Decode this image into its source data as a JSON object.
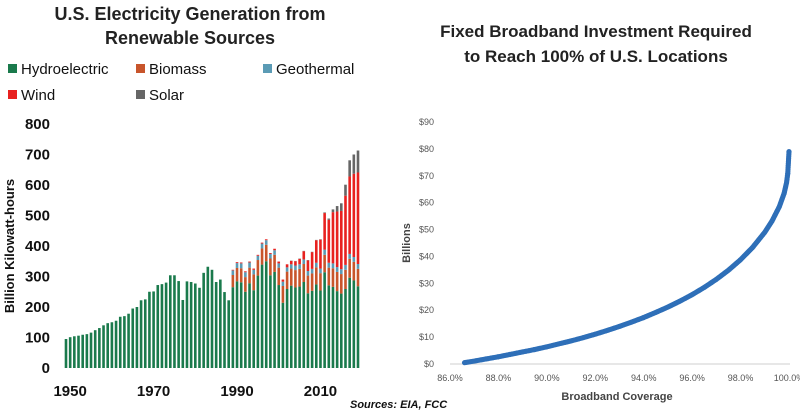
{
  "left_chart": {
    "title_line1": "U.S. Electricity Generation from",
    "title_line2": "Renewable Sources",
    "ylabel": "Billion Kilowatt-hours",
    "legend": {
      "hydro": "Hydroelectric",
      "biomass": "Biomass",
      "geothermal": "Geothermal",
      "wind": "Wind",
      "solar": "Solar"
    },
    "y_ticks": [
      "0",
      "100",
      "200",
      "300",
      "400",
      "500",
      "600",
      "700",
      "800"
    ],
    "x_ticks": [
      "1950",
      "1970",
      "1990",
      "2010"
    ]
  },
  "right_chart": {
    "title_line1": "Fixed Broadband Investment Required",
    "title_line2": "to Reach 100% of U.S. Locations",
    "ylabel": "Billions",
    "xlabel": "Broadband  Coverage",
    "y_ticks": [
      "$0",
      "$10",
      "$20",
      "$30",
      "$40",
      "$50",
      "$60",
      "$70",
      "$80",
      "$90"
    ],
    "x_ticks": [
      "86.0%",
      "88.0%",
      "90.0%",
      "92.0%",
      "94.0%",
      "96.0%",
      "98.0%",
      "100.0%"
    ]
  },
  "source_note": "Sources: EIA, FCC",
  "colors": {
    "hydro": "#1a7a4c",
    "biomass": "#c8552b",
    "geothermal": "#5b9bb5",
    "wind": "#e8211f",
    "solar": "#666666",
    "scatter": "#2e6fb8"
  },
  "chart_data": [
    {
      "type": "bar",
      "stacked": true,
      "title": "U.S. Electricity Generation from Renewable Sources",
      "ylabel": "Billion Kilowatt-hours",
      "ylim": [
        0,
        800
      ],
      "x": [
        1949,
        1950,
        1951,
        1952,
        1953,
        1954,
        1955,
        1956,
        1957,
        1958,
        1959,
        1960,
        1961,
        1962,
        1963,
        1964,
        1965,
        1966,
        1967,
        1968,
        1969,
        1970,
        1971,
        1972,
        1973,
        1974,
        1975,
        1976,
        1977,
        1978,
        1979,
        1980,
        1981,
        1982,
        1983,
        1984,
        1985,
        1986,
        1987,
        1988,
        1989,
        1990,
        1991,
        1992,
        1993,
        1994,
        1995,
        1996,
        1997,
        1998,
        1999,
        2000,
        2001,
        2002,
        2003,
        2004,
        2005,
        2006,
        2007,
        2008,
        2009,
        2010,
        2011,
        2012,
        2013,
        2014,
        2015,
        2016,
        2017,
        2018,
        2019
      ],
      "series": [
        {
          "name": "Hydroelectric",
          "values": [
            95,
            101,
            104,
            106,
            109,
            111,
            116,
            124,
            131,
            140,
            147,
            150,
            155,
            168,
            170,
            178,
            195,
            200,
            222,
            225,
            250,
            251,
            272,
            275,
            280,
            304,
            304,
            285,
            223,
            284,
            282,
            277,
            263,
            312,
            332,
            322,
            282,
            290,
            249,
            222,
            265,
            284,
            281,
            250,
            278,
            255,
            303,
            339,
            350,
            304,
            315,
            272,
            214,
            259,
            270,
            264,
            267,
            282,
            245,
            253,
            274,
            254,
            314,
            271,
            266,
            252,
            244,
            259,
            296,
            287,
            268
          ]
        },
        {
          "name": "Biomass",
          "values": [
            0,
            0,
            0,
            0,
            0,
            0,
            0,
            0,
            0,
            0,
            0,
            0,
            0,
            0,
            0,
            0,
            0,
            0,
            0,
            0,
            0,
            0,
            0,
            0,
            0,
            0,
            0,
            0,
            0,
            0,
            0,
            0,
            0,
            0,
            0,
            0,
            0,
            0,
            0,
            0,
            40,
            44,
            46,
            48,
            51,
            52,
            51,
            53,
            54,
            55,
            56,
            57,
            55,
            57,
            56,
            57,
            58,
            59,
            58,
            57,
            56,
            57,
            57,
            58,
            61,
            63,
            64,
            63,
            62,
            61,
            57
          ]
        },
        {
          "name": "Geothermal",
          "values": [
            0,
            0,
            0,
            0,
            0,
            0,
            0,
            0,
            0,
            0,
            0,
            0,
            0,
            0,
            0,
            0,
            0,
            0,
            0,
            0,
            0,
            0,
            0,
            0,
            0,
            0,
            0,
            0,
            0,
            0,
            0,
            0,
            0,
            0,
            0,
            0,
            0,
            0,
            0,
            0,
            15,
            16,
            16,
            16,
            17,
            15,
            14,
            16,
            15,
            15,
            15,
            14,
            14,
            14,
            14,
            15,
            15,
            15,
            15,
            15,
            15,
            15,
            17,
            16,
            16,
            16,
            16,
            16,
            16,
            16,
            16
          ]
        },
        {
          "name": "Wind",
          "values": [
            0,
            0,
            0,
            0,
            0,
            0,
            0,
            0,
            0,
            0,
            0,
            0,
            0,
            0,
            0,
            0,
            0,
            0,
            0,
            0,
            0,
            0,
            0,
            0,
            0,
            0,
            0,
            0,
            0,
            0,
            0,
            0,
            0,
            0,
            0,
            0,
            0,
            0,
            0,
            0,
            2,
            3,
            3,
            3,
            3,
            4,
            3,
            3,
            3,
            3,
            5,
            6,
            7,
            10,
            11,
            14,
            18,
            27,
            35,
            55,
            74,
            95,
            120,
            141,
            168,
            182,
            191,
            227,
            254,
            273,
            300
          ]
        },
        {
          "name": "Solar",
          "values": [
            0,
            0,
            0,
            0,
            0,
            0,
            0,
            0,
            0,
            0,
            0,
            0,
            0,
            0,
            0,
            0,
            0,
            0,
            0,
            0,
            0,
            0,
            0,
            0,
            0,
            0,
            0,
            0,
            0,
            0,
            0,
            0,
            0,
            0,
            0,
            0,
            0,
            0,
            0,
            0,
            0,
            0,
            0,
            0,
            0,
            0,
            0,
            0,
            0,
            0,
            0,
            0,
            0,
            0,
            1,
            1,
            1,
            1,
            1,
            1,
            1,
            1,
            2,
            4,
            9,
            18,
            25,
            36,
            53,
            63,
            72
          ]
        }
      ]
    },
    {
      "type": "scatter",
      "title": "Fixed Broadband Investment Required to Reach 100% of U.S. Locations",
      "xlabel": "Broadband  Coverage",
      "ylabel": "Billions",
      "xlim": [
        86,
        100
      ],
      "ylim": [
        0,
        90
      ],
      "x": [
        86.6,
        87,
        87.5,
        88,
        88.5,
        89,
        89.5,
        90,
        90.5,
        91,
        91.5,
        92,
        92.5,
        93,
        93.5,
        94,
        94.5,
        95,
        95.5,
        96,
        96.5,
        97,
        97.5,
        98,
        98.5,
        99,
        99.3,
        99.6,
        99.8,
        99.9,
        99.95,
        100
      ],
      "y": [
        0.5,
        1.1,
        1.9,
        2.7,
        3.6,
        4.5,
        5.4,
        6.4,
        7.5,
        8.6,
        9.8,
        11.1,
        12.5,
        14,
        15.6,
        17.3,
        19.2,
        21.2,
        23.4,
        25.8,
        28.5,
        31.5,
        34.9,
        38.8,
        43.4,
        49,
        53.2,
        58.5,
        63.5,
        67.5,
        71,
        79
      ]
    }
  ]
}
